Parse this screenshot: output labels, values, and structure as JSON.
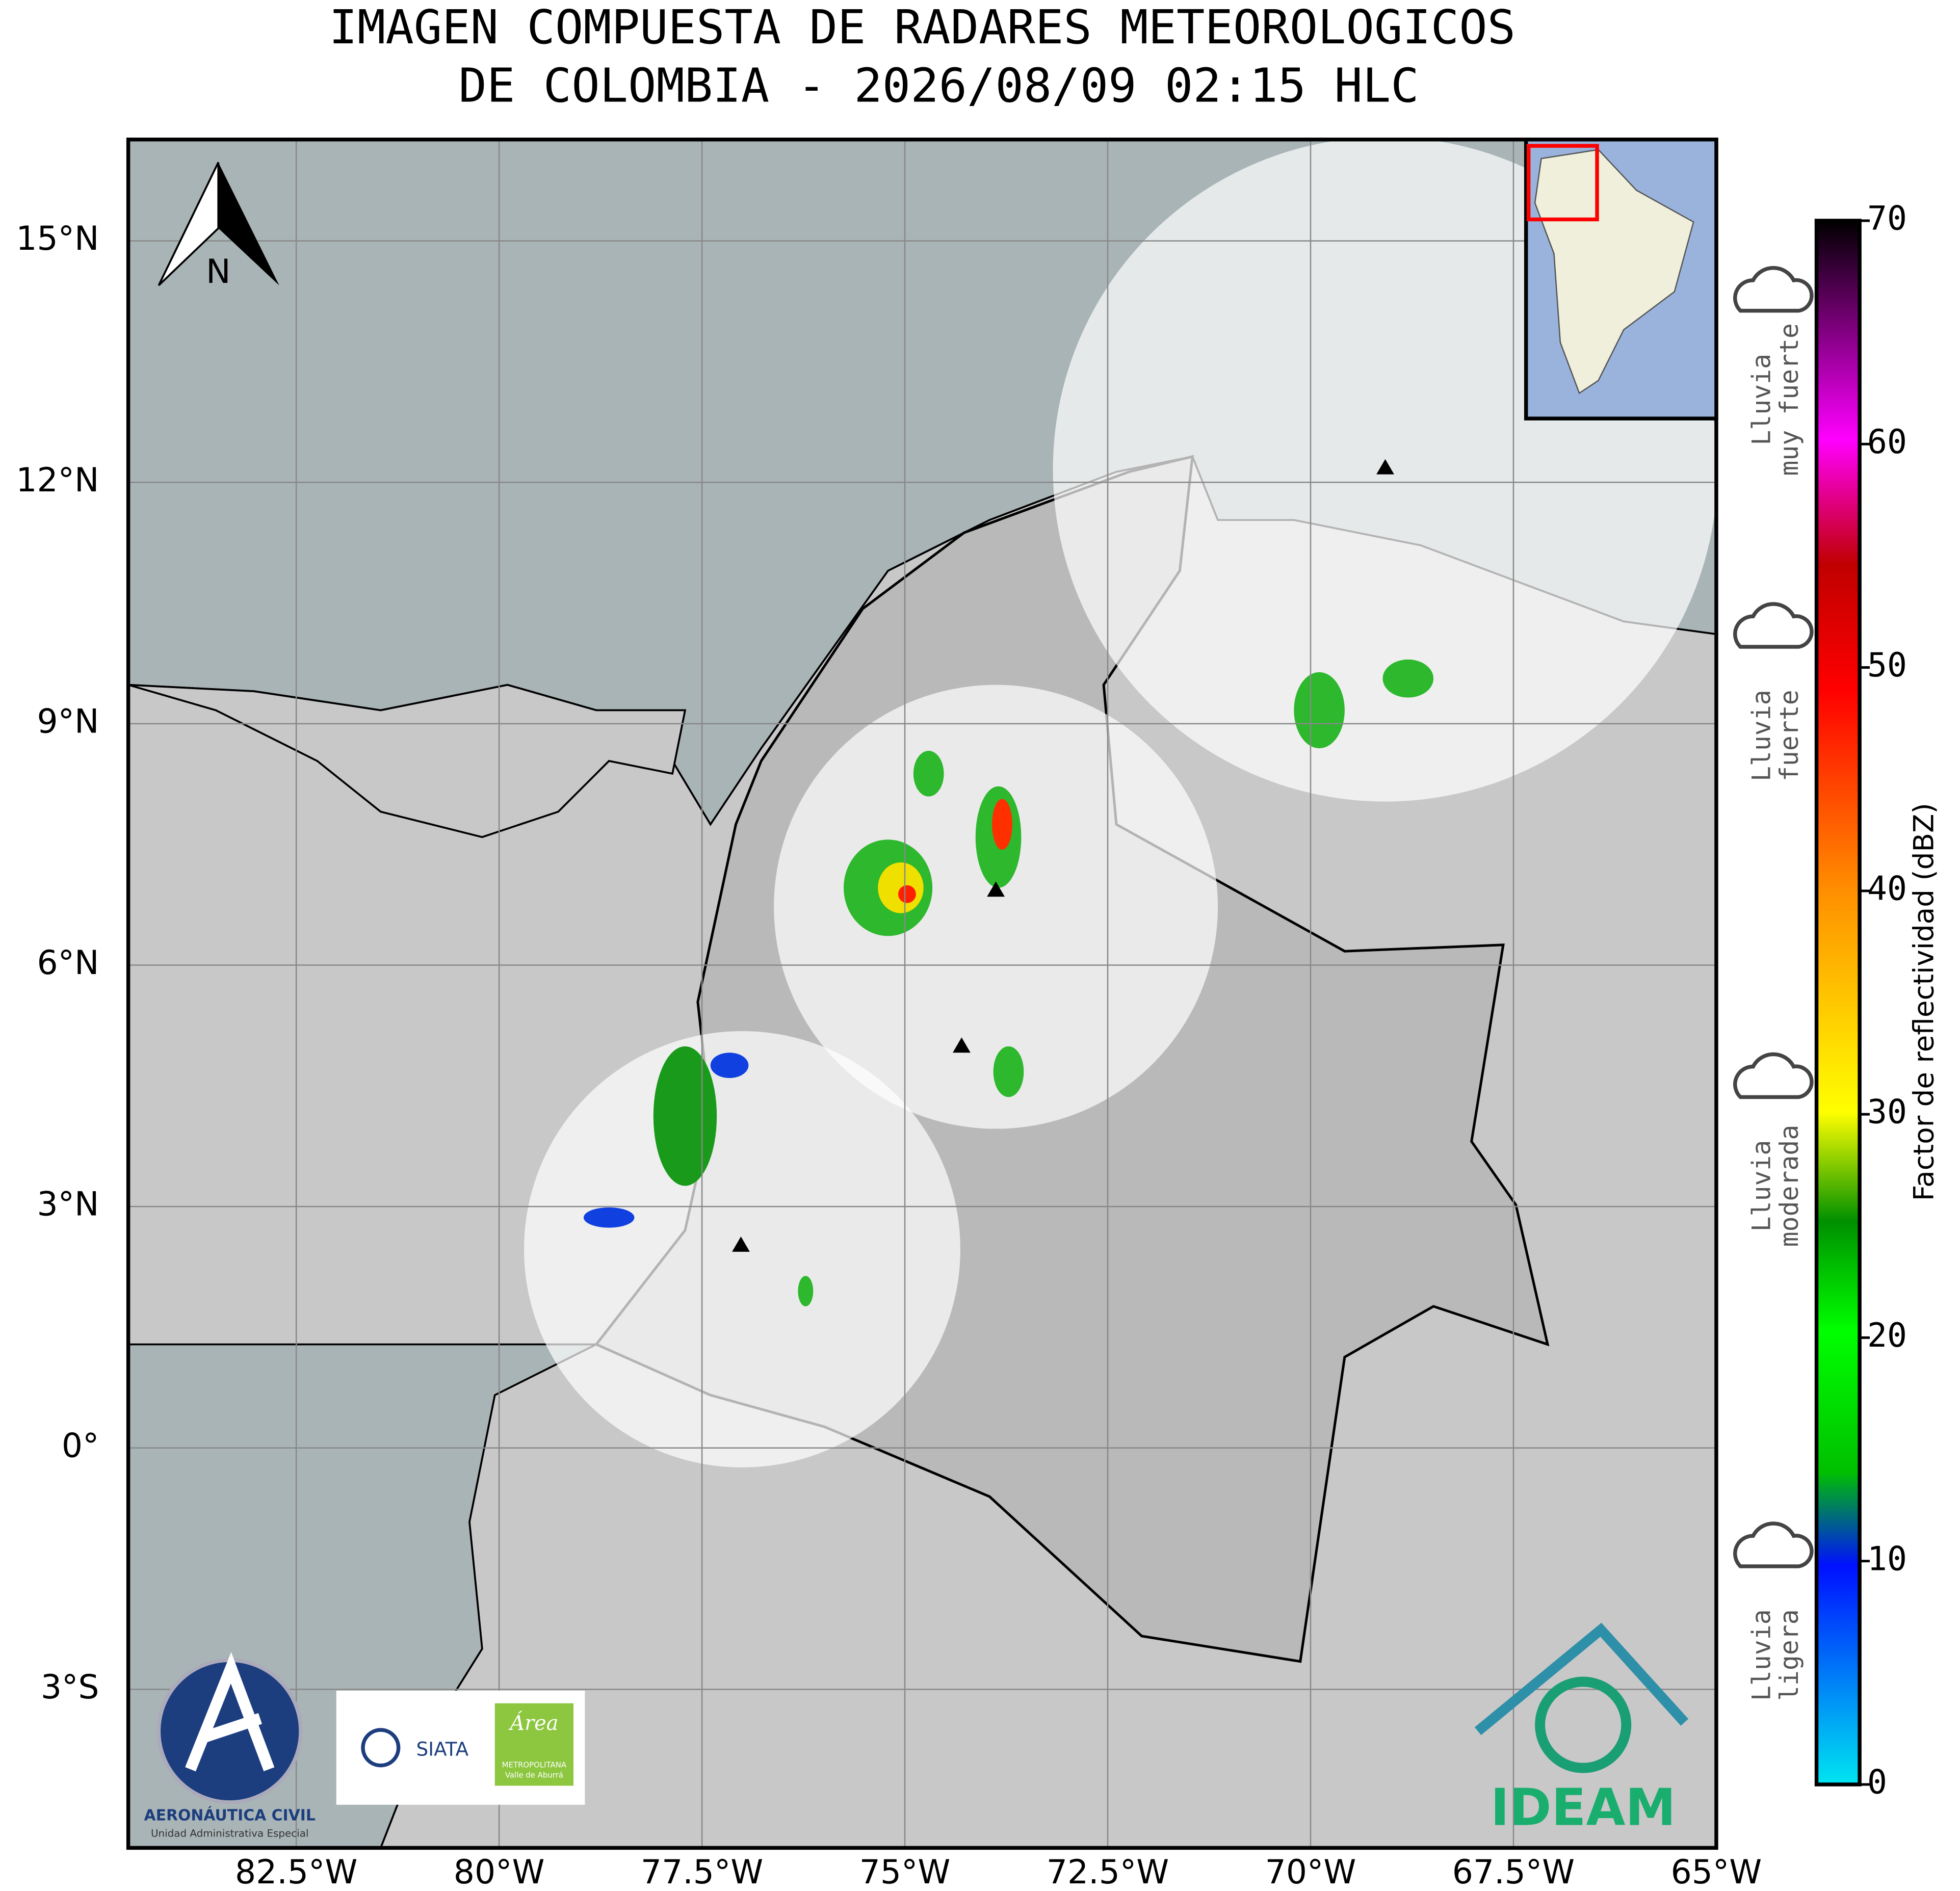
{
  "title": [
    "IMAGEN COMPUESTA DE RADARES METEOROLOGICOS",
    "DE COLOMBIA - 2026/08/09 02:15 HLC"
  ],
  "north": "N",
  "map": {
    "xlim": [
      -84.57,
      -65
    ],
    "ylim": [
      -4.97,
      16.26
    ],
    "xticks": [
      {
        "value": -82.5,
        "label": "82.5°W"
      },
      {
        "value": -80,
        "label": "80°W"
      },
      {
        "value": -77.5,
        "label": "77.5°W"
      },
      {
        "value": -75,
        "label": "75°W"
      },
      {
        "value": -72.5,
        "label": "72.5°W"
      },
      {
        "value": -70,
        "label": "70°W"
      },
      {
        "value": -67.5,
        "label": "67.5°W"
      },
      {
        "value": -65,
        "label": "65°W"
      }
    ],
    "yticks": [
      {
        "value": -3,
        "label": "3°S"
      },
      {
        "value": 0,
        "label": "0°"
      },
      {
        "value": 3,
        "label": "3°N"
      },
      {
        "value": 6,
        "label": "6°N"
      },
      {
        "value": 9,
        "label": "9°N"
      },
      {
        "value": 12,
        "label": "12°N"
      },
      {
        "value": 15,
        "label": "15°N"
      }
    ]
  },
  "colorbar": {
    "label": "Factor de reflectividad (dBZ)",
    "lim": [
      0,
      70
    ],
    "ticks": [
      0,
      10,
      20,
      30,
      40,
      50,
      60,
      70
    ]
  },
  "rain_categories": [
    [
      "Lluvia",
      "ligera"
    ],
    [
      "Lluvia",
      "moderada"
    ],
    [
      "Lluvia",
      "fuerte"
    ],
    [
      "Lluvia",
      "muy fuerte"
    ]
  ],
  "logos": {
    "aerocivil": "AERONÁUTICA CIVIL",
    "aerocivil_sub": "Unidad Administrativa Especial",
    "siata": "SIATA",
    "area": "Área",
    "area_sub": "METROPOLITANA",
    "area_sub2": "Valle de Aburrá",
    "ideam": "IDEAM"
  }
}
